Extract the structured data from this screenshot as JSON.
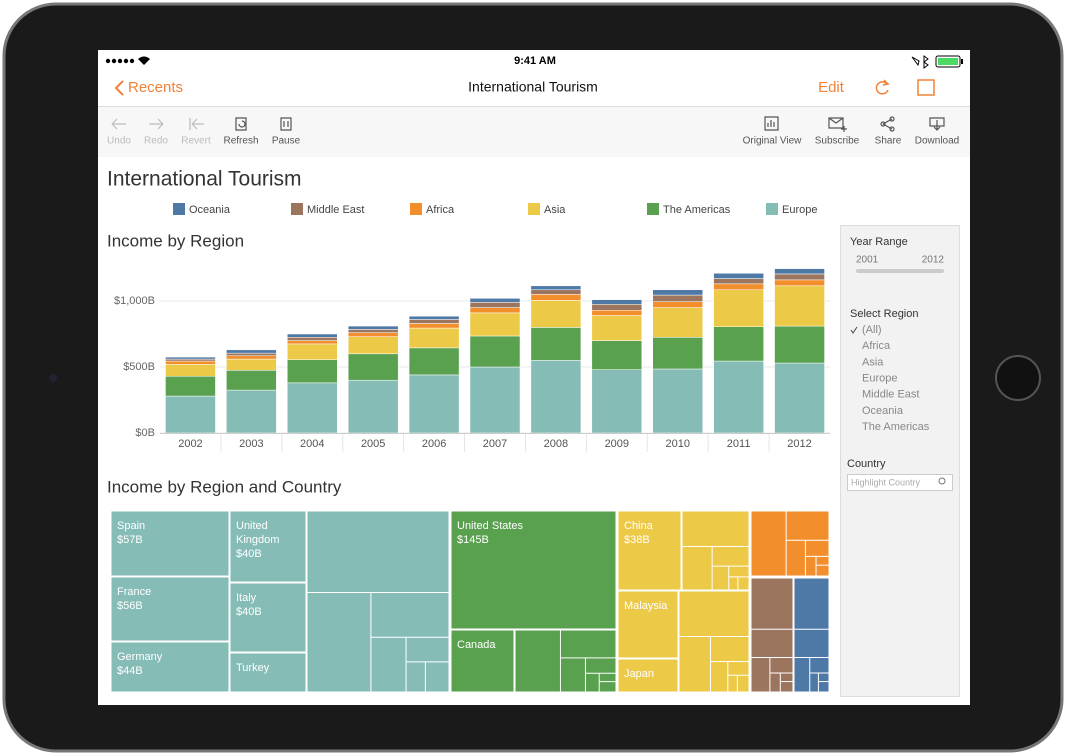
{
  "status": {
    "time": "9:41 AM"
  },
  "nav": {
    "back": "Recents",
    "title": "International Tourism",
    "edit": "Edit"
  },
  "toolbar": {
    "left": [
      "Undo",
      "Redo",
      "Revert",
      "Refresh",
      "Pause"
    ],
    "right": [
      "Original View",
      "Subscribe",
      "Share",
      "Download"
    ]
  },
  "dashboard": {
    "title": "International Tourism"
  },
  "chart_data": {
    "type": "stacked_bar",
    "title": "Income by Region",
    "categories": [
      "2002",
      "2003",
      "2004",
      "2005",
      "2006",
      "2007",
      "2008",
      "2009",
      "2010",
      "2011",
      "2012"
    ],
    "series": [
      {
        "name": "Europe",
        "color": "#86bcb6",
        "values": [
          280,
          325,
          380,
          400,
          440,
          500,
          550,
          480,
          485,
          545,
          530
        ]
      },
      {
        "name": "The Americas",
        "color": "#59a14f",
        "values": [
          150,
          150,
          175,
          200,
          205,
          235,
          250,
          220,
          240,
          260,
          280
        ]
      },
      {
        "name": "Asia",
        "color": "#edc948",
        "values": [
          90,
          85,
          120,
          130,
          150,
          175,
          205,
          190,
          225,
          280,
          305
        ]
      },
      {
        "name": "Africa",
        "color": "#f28e2b",
        "values": [
          25,
          25,
          25,
          30,
          35,
          40,
          45,
          40,
          45,
          45,
          45
        ]
      },
      {
        "name": "Middle East",
        "color": "#9c755f",
        "values": [
          15,
          20,
          25,
          25,
          30,
          40,
          35,
          45,
          50,
          40,
          45
        ]
      },
      {
        "name": "Oceania",
        "color": "#4e79a7",
        "values": [
          15,
          25,
          25,
          25,
          25,
          30,
          30,
          35,
          40,
          40,
          40
        ]
      }
    ],
    "legend_order": [
      5,
      4,
      3,
      2,
      1,
      0
    ],
    "ylim": [
      0,
      1300
    ],
    "yticks": [
      {
        "value": 0,
        "label": "$0B"
      },
      {
        "value": 500,
        "label": "$500B"
      },
      {
        "value": 1000,
        "label": "$1,000B"
      }
    ],
    "grid": true
  },
  "treemap": {
    "title": "Income by Region and Country",
    "cells": [
      {
        "label": "Spain",
        "value": "$57B",
        "color": "#86bcb6"
      },
      {
        "label": "France",
        "value": "$56B",
        "color": "#86bcb6"
      },
      {
        "label": "Germany",
        "value": "$44B",
        "color": "#86bcb6"
      },
      {
        "label": "United\nKingdom",
        "value": "$40B",
        "color": "#86bcb6"
      },
      {
        "label": "Italy",
        "value": "$40B",
        "color": "#86bcb6"
      },
      {
        "label": "Turkey",
        "color": "#86bcb6"
      },
      {
        "label": "United States",
        "value": "$145B",
        "color": "#59a14f"
      },
      {
        "label": "Canada",
        "color": "#59a14f"
      },
      {
        "label": "China",
        "value": "$38B",
        "color": "#edc948"
      },
      {
        "label": "Malaysia",
        "color": "#edc948"
      },
      {
        "label": "Japan",
        "color": "#edc948"
      }
    ]
  },
  "filters": {
    "year_range": {
      "label": "Year Range",
      "from": "2001",
      "to": "2012"
    },
    "region": {
      "label": "Select Region",
      "options": [
        "(All)",
        "Africa",
        "Asia",
        "Europe",
        "Middle East",
        "Oceania",
        "The Americas"
      ]
    },
    "country": {
      "label": "Country",
      "placeholder": "Highlight Country"
    }
  }
}
